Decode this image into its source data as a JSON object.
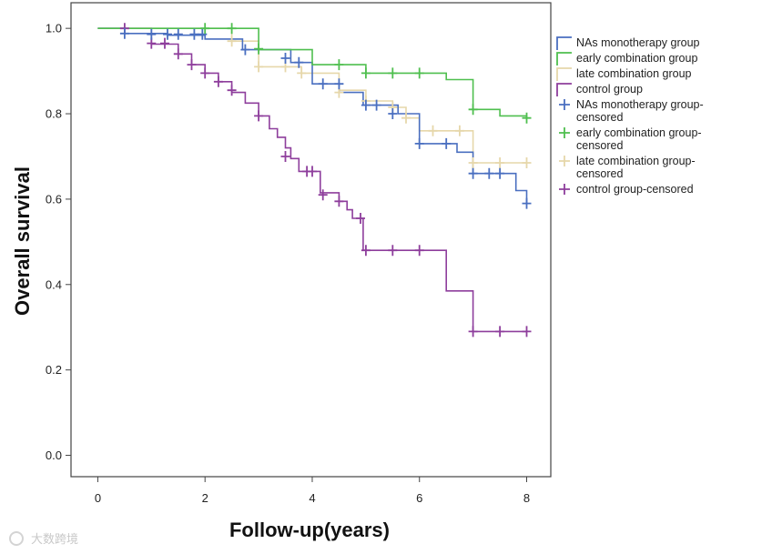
{
  "chart_data": {
    "type": "line",
    "title": "",
    "xlabel": "Follow-up(years)",
    "ylabel": "Overall survival",
    "xlim": [
      -0.5,
      8.45
    ],
    "ylim": [
      -0.05,
      1.06
    ],
    "x_ticks": [
      0,
      2,
      4,
      6,
      8
    ],
    "x_tick_labels": [
      "0",
      "2",
      "4",
      "6",
      "8"
    ],
    "y_ticks": [
      0.0,
      0.2,
      0.4,
      0.6,
      0.8,
      1.0
    ],
    "y_tick_labels": [
      "0.0",
      "0.2",
      "0.4",
      "0.6",
      "0.8",
      "1.0"
    ],
    "grid": false,
    "legend_position": "right",
    "legend": [
      {
        "label": [
          "NAs monotherapy group"
        ],
        "color": "#4a6fc0",
        "kind": "line"
      },
      {
        "label": [
          "early combination group"
        ],
        "color": "#4fbf4f",
        "kind": "line"
      },
      {
        "label": [
          "late combination group"
        ],
        "color": "#e6d7aa",
        "kind": "line"
      },
      {
        "label": [
          "control group"
        ],
        "color": "#8e3e9c",
        "kind": "line"
      },
      {
        "label": [
          "NAs monotherapy group-",
          "censored"
        ],
        "color": "#4a6fc0",
        "kind": "censor"
      },
      {
        "label": [
          "early combination group-",
          "censored"
        ],
        "color": "#4fbf4f",
        "kind": "censor"
      },
      {
        "label": [
          "late combination group-",
          "censored"
        ],
        "color": "#e6d7aa",
        "kind": "censor"
      },
      {
        "label": [
          "control group-censored"
        ],
        "color": "#8e3e9c",
        "kind": "censor"
      }
    ],
    "series": [
      {
        "name": "NAs monotherapy group",
        "color": "#4a6fc0",
        "steps": [
          [
            0,
            1.0
          ],
          [
            0.5,
            0.988
          ],
          [
            1.3,
            0.984
          ],
          [
            2.0,
            0.975
          ],
          [
            2.7,
            0.95
          ],
          [
            3.6,
            0.92
          ],
          [
            4.0,
            0.87
          ],
          [
            4.5,
            0.85
          ],
          [
            4.95,
            0.82
          ],
          [
            5.6,
            0.8
          ],
          [
            6.0,
            0.73
          ],
          [
            6.7,
            0.71
          ],
          [
            7.0,
            0.66
          ],
          [
            7.8,
            0.62
          ],
          [
            8.0,
            0.59
          ]
        ],
        "censored": [
          [
            0.5,
            0.988
          ],
          [
            1.0,
            0.986
          ],
          [
            1.3,
            0.986
          ],
          [
            1.5,
            0.986
          ],
          [
            1.8,
            0.986
          ],
          [
            1.95,
            0.986
          ],
          [
            2.75,
            0.95
          ],
          [
            3.5,
            0.93
          ],
          [
            3.75,
            0.92
          ],
          [
            4.2,
            0.87
          ],
          [
            4.5,
            0.87
          ],
          [
            5.0,
            0.82
          ],
          [
            5.2,
            0.82
          ],
          [
            5.5,
            0.8
          ],
          [
            6.0,
            0.73
          ],
          [
            6.5,
            0.73
          ],
          [
            7.0,
            0.66
          ],
          [
            7.3,
            0.66
          ],
          [
            7.5,
            0.66
          ],
          [
            8.0,
            0.59
          ]
        ]
      },
      {
        "name": "early combination group",
        "color": "#4fbf4f",
        "steps": [
          [
            0,
            1.0
          ],
          [
            3.0,
            0.95
          ],
          [
            4.0,
            0.915
          ],
          [
            5.0,
            0.895
          ],
          [
            6.5,
            0.88
          ],
          [
            7.0,
            0.81
          ],
          [
            7.5,
            0.795
          ],
          [
            8.0,
            0.79
          ]
        ],
        "censored": [
          [
            2.0,
            1.0
          ],
          [
            2.5,
            1.0
          ],
          [
            3.0,
            0.952
          ],
          [
            4.5,
            0.915
          ],
          [
            5.0,
            0.895
          ],
          [
            5.5,
            0.895
          ],
          [
            6.0,
            0.895
          ],
          [
            7.0,
            0.81
          ],
          [
            8.0,
            0.79
          ]
        ]
      },
      {
        "name": "late combination group",
        "color": "#e6d7aa",
        "steps": [
          [
            0,
            1.0
          ],
          [
            2.5,
            0.97
          ],
          [
            3.0,
            0.91
          ],
          [
            3.8,
            0.895
          ],
          [
            4.5,
            0.855
          ],
          [
            5.0,
            0.83
          ],
          [
            5.5,
            0.815
          ],
          [
            5.75,
            0.79
          ],
          [
            6.0,
            0.76
          ],
          [
            7.0,
            0.685
          ],
          [
            8.0,
            0.685
          ]
        ],
        "censored": [
          [
            2.5,
            0.97
          ],
          [
            3.0,
            0.91
          ],
          [
            3.5,
            0.91
          ],
          [
            3.8,
            0.895
          ],
          [
            4.5,
            0.85
          ],
          [
            5.0,
            0.83
          ],
          [
            5.5,
            0.815
          ],
          [
            5.75,
            0.79
          ],
          [
            6.25,
            0.76
          ],
          [
            6.75,
            0.76
          ],
          [
            7.0,
            0.685
          ],
          [
            7.5,
            0.685
          ],
          [
            8.0,
            0.685
          ]
        ]
      },
      {
        "name": "control group",
        "color": "#8e3e9c",
        "steps": [
          [
            0,
            1.0
          ],
          [
            1.0,
            0.963
          ],
          [
            1.5,
            0.94
          ],
          [
            1.75,
            0.915
          ],
          [
            2.0,
            0.895
          ],
          [
            2.25,
            0.875
          ],
          [
            2.5,
            0.85
          ],
          [
            2.75,
            0.825
          ],
          [
            3.0,
            0.795
          ],
          [
            3.2,
            0.765
          ],
          [
            3.35,
            0.745
          ],
          [
            3.5,
            0.72
          ],
          [
            3.6,
            0.695
          ],
          [
            3.75,
            0.665
          ],
          [
            4.0,
            0.665
          ],
          [
            4.15,
            0.615
          ],
          [
            4.5,
            0.595
          ],
          [
            4.65,
            0.575
          ],
          [
            4.75,
            0.555
          ],
          [
            4.95,
            0.48
          ],
          [
            6.5,
            0.385
          ],
          [
            7.0,
            0.29
          ],
          [
            8.0,
            0.29
          ]
        ],
        "censored": [
          [
            0.5,
            1.0
          ],
          [
            1.0,
            0.965
          ],
          [
            1.25,
            0.965
          ],
          [
            1.5,
            0.94
          ],
          [
            1.75,
            0.915
          ],
          [
            2.0,
            0.895
          ],
          [
            2.25,
            0.875
          ],
          [
            2.5,
            0.855
          ],
          [
            3.0,
            0.795
          ],
          [
            3.5,
            0.7
          ],
          [
            3.9,
            0.665
          ],
          [
            4.0,
            0.665
          ],
          [
            4.2,
            0.61
          ],
          [
            4.5,
            0.595
          ],
          [
            4.9,
            0.555
          ],
          [
            5.0,
            0.48
          ],
          [
            5.5,
            0.48
          ],
          [
            6.0,
            0.48
          ],
          [
            7.0,
            0.29
          ],
          [
            7.5,
            0.29
          ],
          [
            8.0,
            0.29
          ]
        ]
      }
    ]
  },
  "watermark": "大数跨境"
}
